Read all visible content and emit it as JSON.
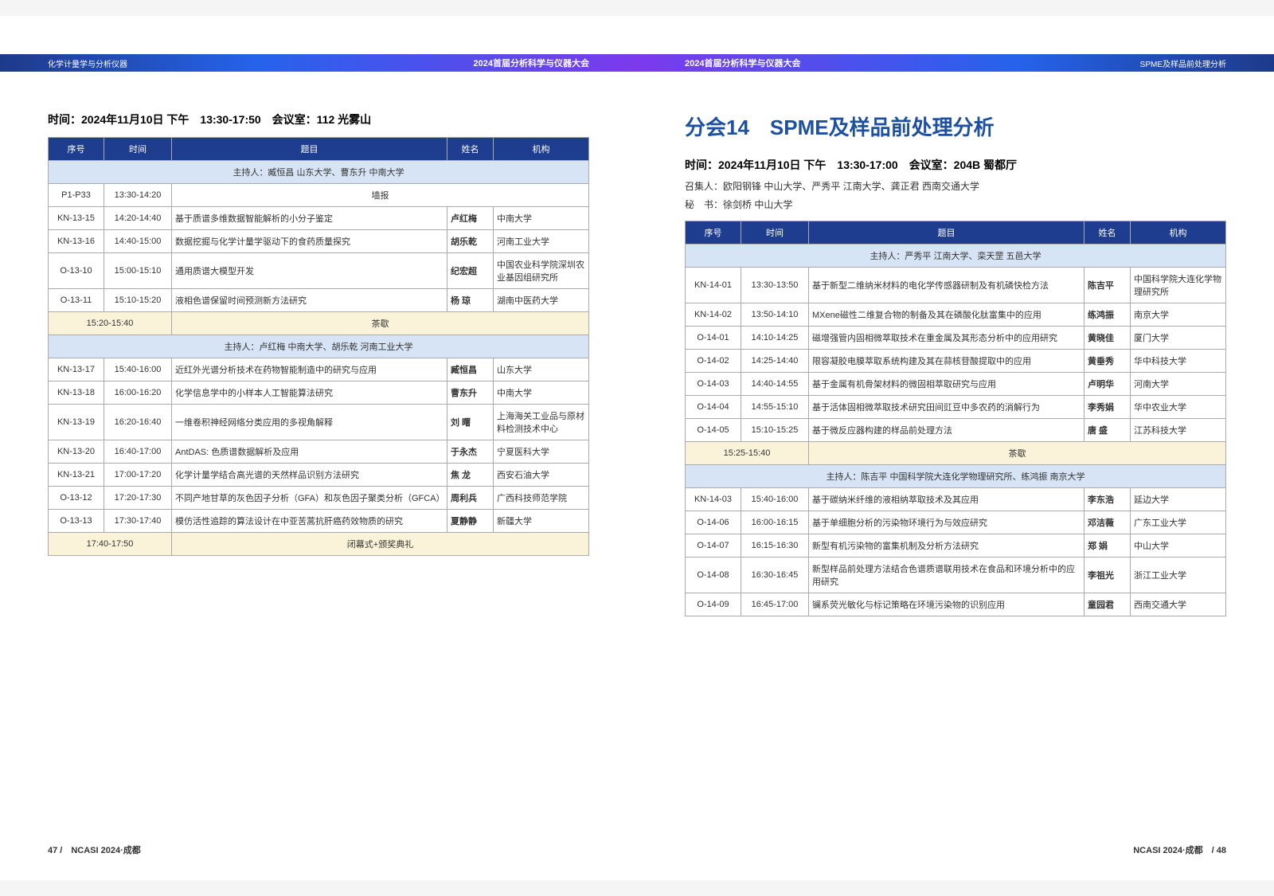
{
  "left": {
    "headerLeft": "化学计量学与分析仪器",
    "headerRight": "2024首届分析科学与仪器大会",
    "sessionInfo": "时间：2024年11月10日 下午　13:30-17:50　会议室：112 光雾山",
    "columns": [
      "序号",
      "时间",
      "题目",
      "姓名",
      "机构"
    ],
    "host1": "主持人：臧恒昌 山东大学、曹东升 中南大学",
    "rows1": [
      {
        "seq": "P1-P33",
        "time": "13:30-14:20",
        "title": "墙报",
        "name": "",
        "org": "",
        "poster": true
      },
      {
        "seq": "KN-13-15",
        "time": "14:20-14:40",
        "title": "基于质谱多维数据智能解析的小分子鉴定",
        "name": "卢红梅",
        "org": "中南大学"
      },
      {
        "seq": "KN-13-16",
        "time": "14:40-15:00",
        "title": "数据挖掘与化学计量学驱动下的食药质量探究",
        "name": "胡乐乾",
        "org": "河南工业大学"
      },
      {
        "seq": "O-13-10",
        "time": "15:00-15:10",
        "title": "通用质谱大模型开发",
        "name": "纪宏超",
        "org": "中国农业科学院深圳农业基因组研究所"
      },
      {
        "seq": "O-13-11",
        "time": "15:10-15:20",
        "title": "液相色谱保留时间预测新方法研究",
        "name": "杨 琼",
        "org": "湖南中医药大学"
      }
    ],
    "break1Time": "15:20-15:40",
    "break1Text": "茶歇",
    "host2": "主持人：卢红梅 中南大学、胡乐乾 河南工业大学",
    "rows2": [
      {
        "seq": "KN-13-17",
        "time": "15:40-16:00",
        "title": "近红外光谱分析技术在药物智能制造中的研究与应用",
        "name": "臧恒昌",
        "org": "山东大学"
      },
      {
        "seq": "KN-13-18",
        "time": "16:00-16:20",
        "title": "化学信息学中的小样本人工智能算法研究",
        "name": "曹东升",
        "org": "中南大学"
      },
      {
        "seq": "KN-13-19",
        "time": "16:20-16:40",
        "title": "一维卷积神经网络分类应用的多视角解释",
        "name": "刘 曙",
        "org": "上海海关工业品与原材料检测技术中心"
      },
      {
        "seq": "KN-13-20",
        "time": "16:40-17:00",
        "title": "AntDAS: 色质谱数据解析及应用",
        "name": "于永杰",
        "org": "宁夏医科大学"
      },
      {
        "seq": "KN-13-21",
        "time": "17:00-17:20",
        "title": "化学计量学结合高光谱的天然样品识别方法研究",
        "name": "焦 龙",
        "org": "西安石油大学"
      },
      {
        "seq": "O-13-12",
        "time": "17:20-17:30",
        "title": "不同产地甘草的灰色因子分析（GFA）和灰色因子聚类分析（GFCA）",
        "name": "周利兵",
        "org": "广西科技师范学院"
      },
      {
        "seq": "O-13-13",
        "time": "17:30-17:40",
        "title": "模仿活性追踪的算法设计在中亚苦蒿抗肝癌药效物质的研究",
        "name": "夏静静",
        "org": "新疆大学"
      }
    ],
    "closingTime": "17:40-17:50",
    "closingText": "闭幕式+颁奖典礼",
    "footer": "47 /　NCASI 2024·成都"
  },
  "right": {
    "headerLeft": "2024首届分析科学与仪器大会",
    "headerRight": "SPME及样品前处理分析",
    "sessionTitle": "分会14　SPME及样品前处理分析",
    "sessionInfo": "时间：2024年11月10日 下午　13:30-17:00　会议室：204B 蜀都厅",
    "convener": "召集人：欧阳钢锋 中山大学、严秀平 江南大学、龚正君 西南交通大学",
    "secretary": "秘　书：徐剑桥 中山大学",
    "columns": [
      "序号",
      "时间",
      "题目",
      "姓名",
      "机构"
    ],
    "host1": "主持人：严秀平 江南大学、栾天罡 五邑大学",
    "rows1": [
      {
        "seq": "KN-14-01",
        "time": "13:30-13:50",
        "title": "基于新型二维纳米材料的电化学传感器研制及有机磷快检方法",
        "name": "陈吉平",
        "org": "中国科学院大连化学物理研究所"
      },
      {
        "seq": "KN-14-02",
        "time": "13:50-14:10",
        "title": "MXene磁性二维复合物的制备及其在磷酸化肽富集中的应用",
        "name": "练鸿振",
        "org": "南京大学"
      },
      {
        "seq": "O-14-01",
        "time": "14:10-14:25",
        "title": "磁增强管内固相微萃取技术在重金属及其形态分析中的应用研究",
        "name": "黄晓佳",
        "org": "厦门大学"
      },
      {
        "seq": "O-14-02",
        "time": "14:25-14:40",
        "title": "限容凝胶电膜萃取系统构建及其在蒜核苷酸提取中的应用",
        "name": "黄垂秀",
        "org": "华中科技大学"
      },
      {
        "seq": "O-14-03",
        "time": "14:40-14:55",
        "title": "基于金属有机骨架材料的微固相萃取研究与应用",
        "name": "卢明华",
        "org": "河南大学"
      },
      {
        "seq": "O-14-04",
        "time": "14:55-15:10",
        "title": "基于活体固相微萃取技术研究田间豇豆中多农药的消解行为",
        "name": "李秀娟",
        "org": "华中农业大学"
      },
      {
        "seq": "O-14-05",
        "time": "15:10-15:25",
        "title": "基于微反应器构建的样品前处理方法",
        "name": "唐 盛",
        "org": "江苏科技大学"
      }
    ],
    "break1Time": "15:25-15:40",
    "break1Text": "茶歇",
    "host2": "主持人：陈吉平 中国科学院大连化学物理研究所、练鸿振 南京大学",
    "rows2": [
      {
        "seq": "KN-14-03",
        "time": "15:40-16:00",
        "title": "基于碳纳米纤维的液相纳萃取技术及其应用",
        "name": "李东浩",
        "org": "延边大学"
      },
      {
        "seq": "O-14-06",
        "time": "16:00-16:15",
        "title": "基于单细胞分析的污染物环境行为与效应研究",
        "name": "邓洁薇",
        "org": "广东工业大学"
      },
      {
        "seq": "O-14-07",
        "time": "16:15-16:30",
        "title": "新型有机污染物的富集机制及分析方法研究",
        "name": "郑 娟",
        "org": "中山大学"
      },
      {
        "seq": "O-14-08",
        "time": "16:30-16:45",
        "title": "新型样品前处理方法结合色谱质谱联用技术在食品和环境分析中的应用研究",
        "name": "李祖光",
        "org": "浙江工业大学"
      },
      {
        "seq": "O-14-09",
        "time": "16:45-17:00",
        "title": "镧系荧光敏化与标记策略在环境污染物的识别应用",
        "name": "童园君",
        "org": "西南交通大学"
      }
    ],
    "footer": "NCASI 2024·成都　/ 48"
  }
}
